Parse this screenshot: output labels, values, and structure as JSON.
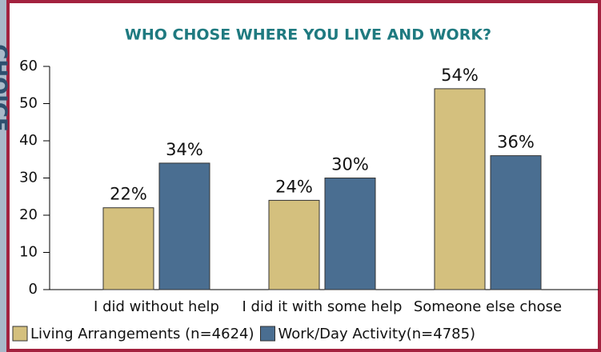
{
  "chart_data": {
    "type": "bar",
    "side_label": "CHOICE",
    "title": "WHO CHOSE WHERE YOU LIVE AND WORK?",
    "categories": [
      "I did without help",
      "I did it with some help",
      "Someone else chose"
    ],
    "series": [
      {
        "name": "Living Arrangements (n=4624)",
        "color": "#d4c07e",
        "values": [
          22,
          24,
          54
        ],
        "value_labels": [
          "22%",
          "24%",
          "54%"
        ]
      },
      {
        "name": "Work/Day Activity(n=4785)",
        "color": "#4a6e91",
        "values": [
          34,
          30,
          36
        ],
        "value_labels": [
          "34%",
          "30%",
          "36%"
        ]
      }
    ],
    "ylim": [
      0,
      60
    ],
    "yticks": [
      0,
      10,
      20,
      30,
      40,
      50,
      60
    ],
    "legend": "bottom"
  }
}
